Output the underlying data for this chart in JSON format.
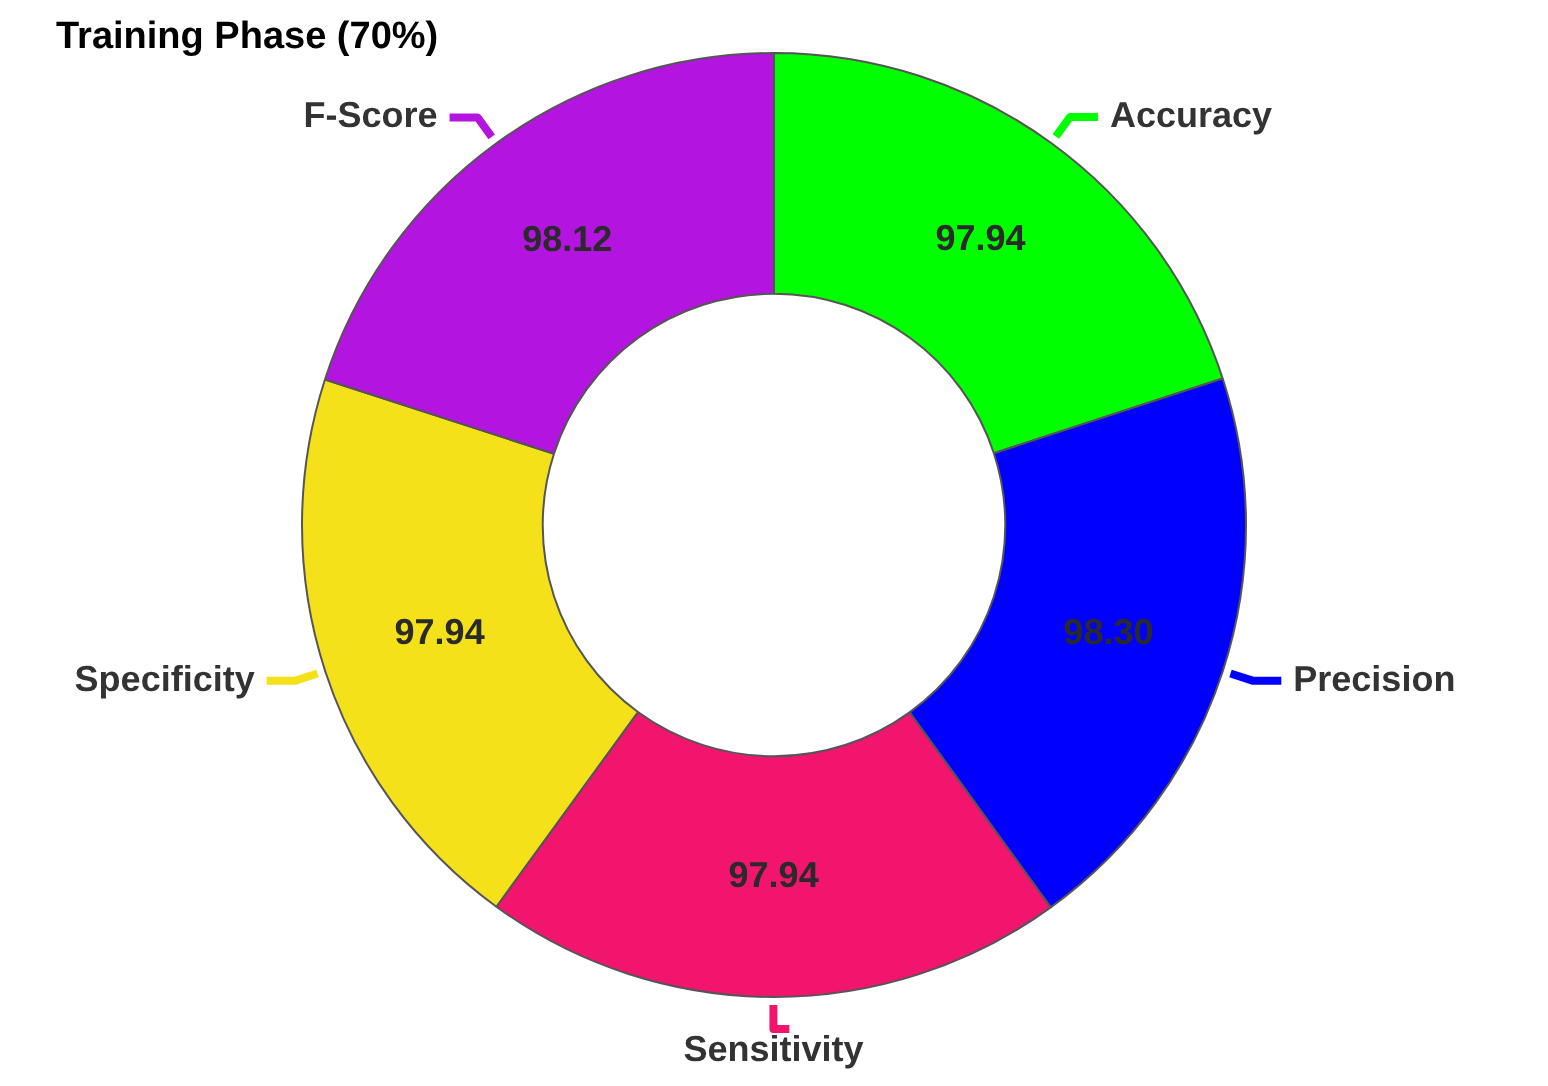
{
  "chart_data": {
    "type": "donut",
    "title": "Training Phase (70%)",
    "categories": [
      "Accuracy",
      "Precision",
      "Sensitivity",
      "Specificity",
      "F-Score"
    ],
    "values": [
      97.94,
      98.3,
      97.94,
      97.94,
      98.12
    ],
    "colors": [
      "#00ff00",
      "#0000ff",
      "#f2156e",
      "#f5e11a",
      "#b414e0"
    ],
    "value_labels": [
      "97.94",
      "98.30",
      "97.94",
      "97.94",
      "98.12"
    ]
  }
}
